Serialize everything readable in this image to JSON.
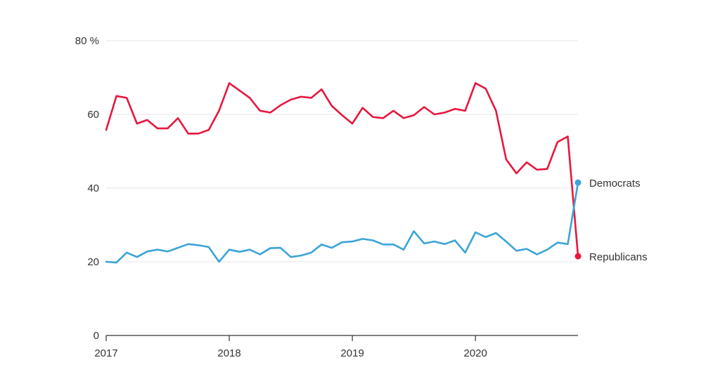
{
  "chart_data": {
    "type": "line",
    "title": "",
    "xlabel": "",
    "ylabel": "",
    "ylim": [
      0,
      80
    ],
    "yticks": [
      {
        "value": 0,
        "label": "0"
      },
      {
        "value": 20,
        "label": "20"
      },
      {
        "value": 40,
        "label": "40"
      },
      {
        "value": 60,
        "label": "60"
      },
      {
        "value": 80,
        "label": "80 %"
      }
    ],
    "xlim": [
      2017.0,
      2020.833
    ],
    "xticks": [
      {
        "value": 2017,
        "label": "2017"
      },
      {
        "value": 2018,
        "label": "2018"
      },
      {
        "value": 2019,
        "label": "2019"
      },
      {
        "value": 2020,
        "label": "2020"
      }
    ],
    "grid": true,
    "legend": "inline-right",
    "x": [
      "2017-01",
      "2017-02",
      "2017-03",
      "2017-04",
      "2017-05",
      "2017-06",
      "2017-07",
      "2017-08",
      "2017-09",
      "2017-10",
      "2017-11",
      "2017-12",
      "2018-01",
      "2018-02",
      "2018-03",
      "2018-04",
      "2018-05",
      "2018-06",
      "2018-07",
      "2018-08",
      "2018-09",
      "2018-10",
      "2018-11",
      "2018-12",
      "2019-01",
      "2019-02",
      "2019-03",
      "2019-04",
      "2019-05",
      "2019-06",
      "2019-07",
      "2019-08",
      "2019-09",
      "2019-10",
      "2019-11",
      "2019-12",
      "2020-01",
      "2020-02",
      "2020-03",
      "2020-04",
      "2020-05",
      "2020-06",
      "2020-07",
      "2020-08",
      "2020-09",
      "2020-10",
      "2020-11"
    ],
    "series": [
      {
        "name": "Republicans",
        "color": "#e8163e",
        "values": [
          55.8,
          65.0,
          64.5,
          57.5,
          58.5,
          56.2,
          56.2,
          59.0,
          54.8,
          54.8,
          55.8,
          61.0,
          68.5,
          66.5,
          64.5,
          61.0,
          60.5,
          62.5,
          64.0,
          64.8,
          64.5,
          66.8,
          62.3,
          59.8,
          57.5,
          61.8,
          59.3,
          59.0,
          61.0,
          59.0,
          59.8,
          62.0,
          60.0,
          60.5,
          61.5,
          61.0,
          68.5,
          67.0,
          61.0,
          47.8,
          44.0,
          47.0,
          45.0,
          45.2,
          52.5,
          54.0,
          21.5
        ]
      },
      {
        "name": "Democrats",
        "color": "#3aa4d8",
        "values": [
          20.0,
          19.8,
          22.5,
          21.3,
          22.8,
          23.3,
          22.8,
          23.8,
          24.8,
          24.5,
          24.0,
          20.0,
          23.3,
          22.7,
          23.3,
          22.0,
          23.7,
          23.8,
          21.3,
          21.7,
          22.5,
          24.7,
          23.8,
          25.3,
          25.5,
          26.2,
          25.8,
          24.7,
          24.7,
          23.3,
          28.3,
          25.0,
          25.5,
          24.8,
          25.8,
          22.5,
          28.0,
          26.7,
          27.8,
          25.5,
          23.0,
          23.5,
          22.0,
          23.3,
          25.2,
          24.8,
          41.5
        ]
      }
    ]
  }
}
